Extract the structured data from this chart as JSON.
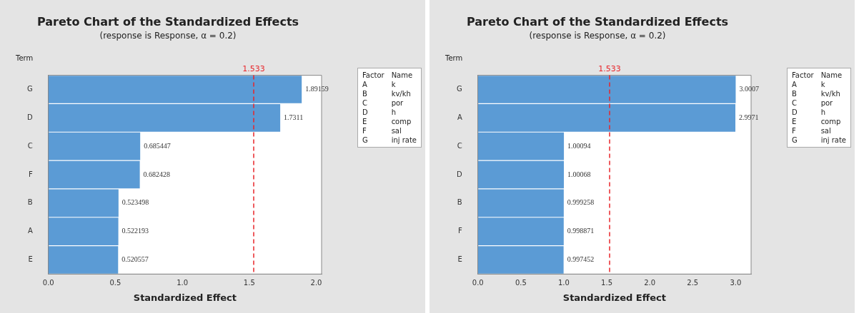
{
  "chart_data": [
    {
      "type": "bar",
      "orientation": "horizontal",
      "title": "Pareto Chart of the Standardized Effects",
      "subtitle": "(response is Response, α = 0.2)",
      "xlabel": "Standardized Effect",
      "ylabel": "Term",
      "categories": [
        "G",
        "D",
        "C",
        "F",
        "B",
        "A",
        "E"
      ],
      "values": [
        1.89159,
        1.7311,
        0.685447,
        0.682428,
        0.523498,
        0.522193,
        0.520557
      ],
      "color": "#5b9bd5",
      "data_labels": true,
      "xlim": [
        0,
        2.04
      ],
      "xticks": [
        {
          "value": 0,
          "label": "0.0"
        },
        {
          "value": 0.5,
          "label": "0.5"
        },
        {
          "value": 1,
          "label": "1.0"
        },
        {
          "value": 1.5,
          "label": "1.5"
        },
        {
          "value": 2,
          "label": "2.0"
        }
      ],
      "ref_lines": [
        {
          "axis": "x",
          "value": 1.533,
          "label": "1.533",
          "color": "#e8252a",
          "line_style": "dashed"
        }
      ],
      "annotations": [
        "Factor",
        "Name",
        "A",
        "k",
        "B",
        "kv/kh",
        "C",
        "por",
        "D",
        "h",
        "E",
        "comp",
        "F",
        "sal",
        "G",
        "inj rate"
      ],
      "grid": false,
      "legend": false
    },
    {
      "type": "bar",
      "orientation": "horizontal",
      "title": "Pareto Chart of the Standardized Effects",
      "subtitle": "(response is Response, α = 0.2)",
      "xlabel": "Standardized Effect",
      "ylabel": "Term",
      "categories": [
        "G",
        "A",
        "C",
        "D",
        "B",
        "F",
        "E"
      ],
      "values": [
        3.0007,
        2.9971,
        1.00094,
        1.00068,
        0.999258,
        0.998871,
        0.997452
      ],
      "color": "#5b9bd5",
      "data_labels": true,
      "xlim": [
        0,
        3.18
      ],
      "xticks": [
        {
          "value": 0,
          "label": "0.0"
        },
        {
          "value": 0.5,
          "label": "0.5"
        },
        {
          "value": 1,
          "label": "1.0"
        },
        {
          "value": 1.5,
          "label": "1.5"
        },
        {
          "value": 2,
          "label": "2.0"
        },
        {
          "value": 2.5,
          "label": "2.5"
        },
        {
          "value": 3,
          "label": "3.0"
        }
      ],
      "ref_lines": [
        {
          "axis": "x",
          "value": 1.533,
          "label": "1.533",
          "color": "#e8252a",
          "line_style": "dashed"
        }
      ],
      "annotations": [
        "Factor",
        "Name",
        "A",
        "k",
        "B",
        "kv/kh",
        "C",
        "por",
        "D",
        "h",
        "E",
        "comp",
        "F",
        "sal",
        "G",
        "inj rate"
      ],
      "grid": false,
      "legend": false
    }
  ]
}
